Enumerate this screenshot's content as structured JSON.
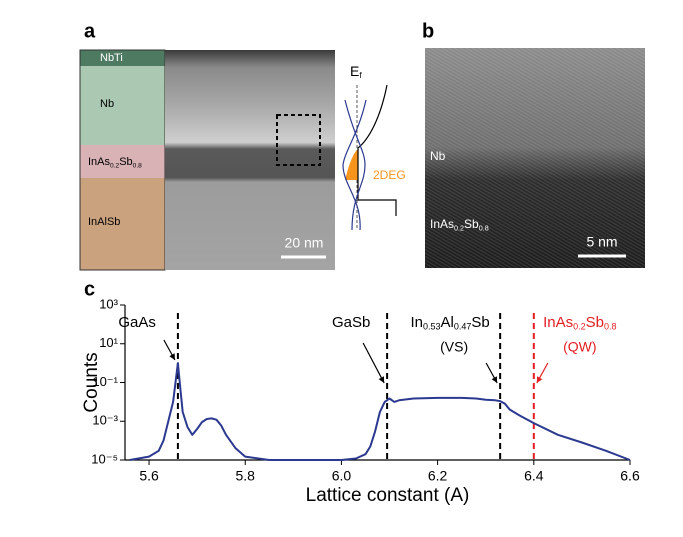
{
  "panel_a": {
    "letter": "a",
    "layers": [
      [
        "NbTi"
      ],
      [
        "Nb"
      ],
      [
        "InAs",
        "0.2",
        "Sb",
        "0.8"
      ],
      [
        "InAlSb"
      ]
    ],
    "scale_bar": "20 nm",
    "fermi_label": [
      "E",
      "f"
    ],
    "gas_label": "2DEG"
  },
  "panel_b": {
    "letter": "b",
    "layers": [
      [
        "Nb"
      ],
      [
        "InAs",
        "0.2",
        "Sb",
        "0.8"
      ]
    ],
    "scale_bar": "5 nm"
  },
  "chart_data": {
    "type": "line",
    "letter": "c",
    "x_label": "Lattice constant (A)",
    "y_label": "Counts",
    "log_y": true,
    "xlim": [
      5.55,
      6.6
    ],
    "xticks": [
      5.6,
      5.8,
      {
        "value": 6,
        "label": "6.0"
      },
      6.2,
      6.4,
      6.6
    ],
    "ylim": [
      1e-05,
      1000
    ],
    "yticks": [
      {
        "value": 1e-05,
        "label": "10⁻⁵"
      },
      {
        "value": 0.001,
        "label": "10⁻³"
      },
      {
        "value": 0.1,
        "label": "10⁻¹"
      },
      {
        "value": 10,
        "label": "10¹"
      },
      {
        "value": 1000,
        "label": "10³"
      }
    ],
    "series": [
      {
        "color": "#2b3990",
        "x": [
          5.56,
          5.6,
          5.62,
          5.63,
          5.64,
          5.65,
          5.655,
          5.66,
          5.665,
          5.67,
          5.68,
          5.69,
          5.7,
          5.71,
          5.72,
          5.73,
          5.74,
          5.75,
          5.76,
          5.78,
          5.8,
          5.85,
          5.9,
          5.95,
          6.0,
          6.03,
          6.05,
          6.06,
          6.07,
          6.08,
          6.09,
          6.1,
          6.11,
          6.12,
          6.15,
          6.2,
          6.25,
          6.28,
          6.3,
          6.32,
          6.33,
          6.34,
          6.35,
          6.37,
          6.4,
          6.45,
          6.5,
          6.55,
          6.6
        ],
        "values": [
          1e-05,
          1.5e-05,
          3e-05,
          0.0001,
          0.001,
          0.01,
          0.1,
          1,
          0.05,
          0.003,
          0.0005,
          0.0002,
          0.0004,
          0.0009,
          0.0013,
          0.0014,
          0.0012,
          0.0006,
          0.0002,
          4e-05,
          1.5e-05,
          1e-05,
          1e-05,
          1e-05,
          1e-05,
          1.2e-05,
          2e-05,
          5e-05,
          0.0003,
          0.003,
          0.01,
          0.015,
          0.01,
          0.012,
          0.015,
          0.016,
          0.016,
          0.015,
          0.013,
          0.012,
          0.011,
          0.008,
          0.004,
          0.002,
          0.0008,
          0.0002,
          8e-05,
          3e-05,
          1e-05
        ]
      }
    ],
    "annotations": [
      {
        "x": 5.66,
        "label": [
          "GaAs"
        ],
        "color": "#000000"
      },
      {
        "x": 6.095,
        "label": [
          "GaSb"
        ],
        "color": "#000000"
      },
      {
        "x": 6.33,
        "label": [
          "In",
          "0.53",
          "Al",
          "0.47",
          "Sb"
        ],
        "sublabel": "(VS)",
        "color": "#000000"
      },
      {
        "x": 6.4,
        "label": [
          "InAs",
          "0.2",
          "Sb",
          "0.8"
        ],
        "sublabel": "(QW)",
        "color": "#e31e24"
      }
    ]
  }
}
